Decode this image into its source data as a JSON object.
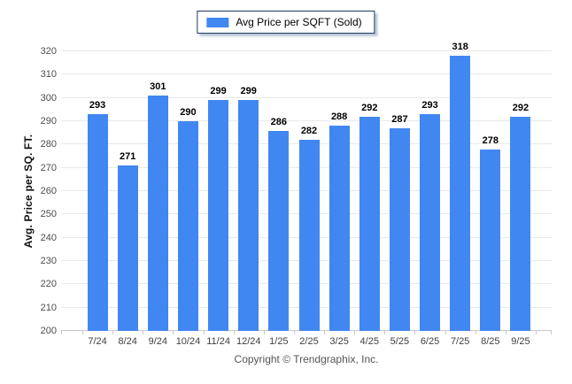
{
  "legend": {
    "label": "Avg Price per SQFT (Sold)"
  },
  "chart_data": {
    "type": "bar",
    "title": "",
    "categories": [
      "7/24",
      "8/24",
      "9/24",
      "10/24",
      "11/24",
      "12/24",
      "1/25",
      "2/25",
      "3/25",
      "4/25",
      "5/25",
      "6/25",
      "7/25",
      "8/25",
      "9/25"
    ],
    "values": [
      293,
      271,
      301,
      290,
      299,
      299,
      286,
      282,
      288,
      292,
      287,
      293,
      318,
      278,
      292
    ],
    "series": [
      {
        "name": "Avg Price per SQFT (Sold)",
        "values": [
          293,
          271,
          301,
          290,
          299,
          299,
          286,
          282,
          288,
          292,
          287,
          293,
          318,
          278,
          292
        ]
      }
    ],
    "xlabel": "",
    "ylabel": "Avg. Price per SQ. FT.",
    "ylim": [
      200,
      320
    ],
    "yticks": [
      200,
      210,
      220,
      230,
      240,
      250,
      260,
      270,
      280,
      290,
      300,
      310,
      320
    ],
    "grid": true,
    "value_labels": true,
    "legend_position": "top-center",
    "bar_color": "#4187F2"
  },
  "footer": {
    "copyright": "Copyright © Trendgraphix, Inc."
  }
}
